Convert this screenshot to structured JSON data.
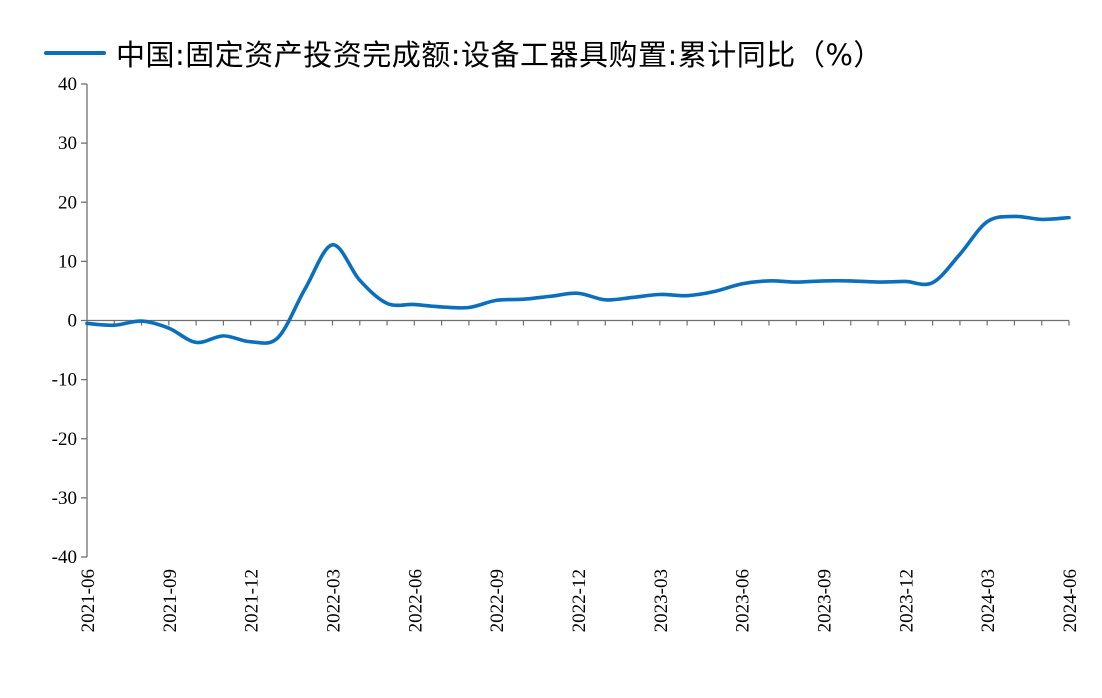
{
  "colors": {
    "series": "#0a6fbd",
    "axis": "#707070",
    "text": "#000000"
  },
  "chart_data": {
    "type": "line",
    "title": "",
    "xlabel": "",
    "ylabel": "",
    "ylim": [
      -40,
      40
    ],
    "yticks": [
      40,
      30,
      20,
      10,
      0,
      -10,
      -20,
      -30,
      -40
    ],
    "ytick_labels": [
      "40",
      "30",
      "20",
      "10",
      "0",
      "-10",
      "-20",
      "-30",
      "-40"
    ],
    "xlim": [
      "2021-06",
      "2024-06"
    ],
    "xtick_labels": [
      "2021-06",
      "2021-09",
      "2021-12",
      "2022-03",
      "2022-06",
      "2022-09",
      "2022-12",
      "2023-03",
      "2023-06",
      "2023-09",
      "2023-12",
      "2024-03",
      "2024-06"
    ],
    "x": [
      "2021-06",
      "2021-07",
      "2021-08",
      "2021-09",
      "2021-10",
      "2021-11",
      "2021-12",
      "2022-01",
      "2022-02",
      "2022-03",
      "2022-04",
      "2022-05",
      "2022-06",
      "2022-07",
      "2022-08",
      "2022-09",
      "2022-10",
      "2022-11",
      "2022-12",
      "2023-01",
      "2023-02",
      "2023-03",
      "2023-04",
      "2023-05",
      "2023-06",
      "2023-07",
      "2023-08",
      "2023-09",
      "2023-10",
      "2023-11",
      "2023-12",
      "2024-01",
      "2024-02",
      "2024-03",
      "2024-04",
      "2024-05",
      "2024-06"
    ],
    "series": [
      {
        "name": "中国:固定资产投资完成额:设备工器具购置:累计同比（%）",
        "values": [
          -0.5,
          -0.8,
          -0.1,
          -1.3,
          -3.7,
          -2.6,
          -3.6,
          -2.9,
          5.4,
          12.8,
          6.8,
          2.9,
          2.7,
          2.3,
          2.2,
          3.4,
          3.6,
          4.1,
          4.6,
          3.5,
          3.9,
          4.4,
          4.2,
          4.9,
          6.2,
          6.7,
          6.5,
          6.7,
          6.7,
          6.5,
          6.6,
          6.4,
          11.2,
          16.7,
          17.6,
          17.1,
          17.4
        ]
      }
    ],
    "legend": "top",
    "grid": false
  }
}
